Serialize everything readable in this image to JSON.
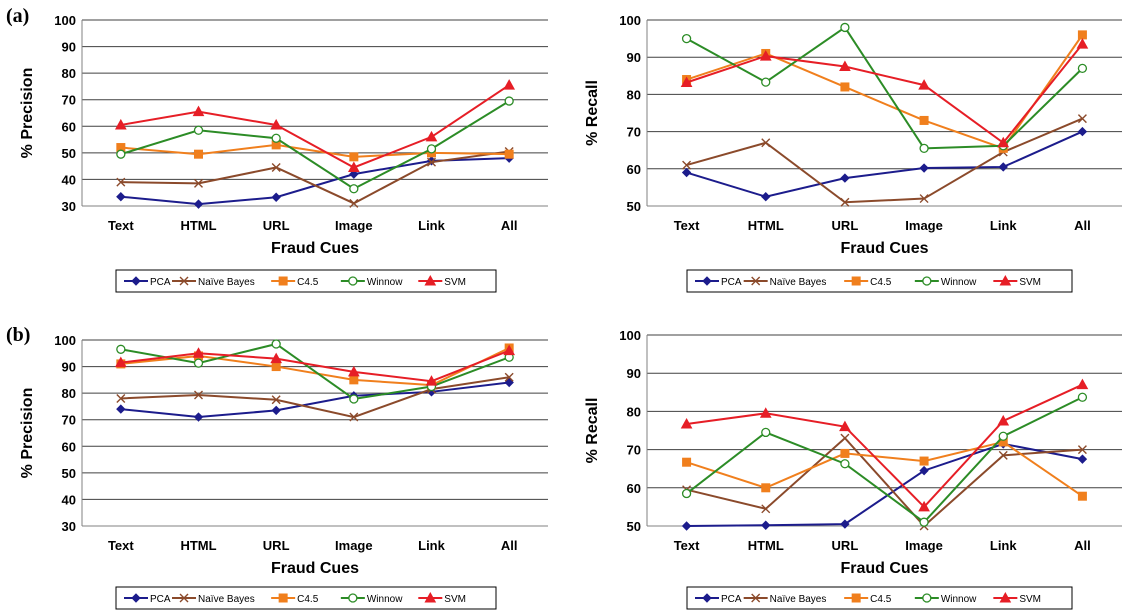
{
  "panel_labels": [
    "(a)",
    "(b)"
  ],
  "chart_data": [
    {
      "type": "line",
      "ylabel": "% Precision",
      "xlabel": "Fraud Cues",
      "categories": [
        "Text",
        "HTML",
        "URL",
        "Image",
        "Link",
        "All"
      ],
      "ylim": [
        30,
        100
      ],
      "yticks": [
        30,
        40,
        50,
        60,
        70,
        80,
        90,
        100
      ],
      "grid": true,
      "legend_position": "bottom",
      "series": [
        {
          "name": "PCA",
          "values": [
            33.5,
            30.7,
            33.3,
            42,
            47,
            48
          ]
        },
        {
          "name": "Naïve Bayes",
          "values": [
            39,
            38.5,
            44.5,
            31,
            46.5,
            50.5
          ]
        },
        {
          "name": "C4.5",
          "values": [
            52,
            49.5,
            53,
            48.5,
            50,
            49.5
          ]
        },
        {
          "name": "Winnow",
          "values": [
            49.5,
            58.5,
            55.5,
            36.5,
            51.5,
            69.5
          ]
        },
        {
          "name": "SVM",
          "values": [
            60.5,
            65.5,
            60.5,
            44.5,
            56,
            75.5
          ]
        }
      ]
    },
    {
      "type": "line",
      "ylabel": "% Recall",
      "xlabel": "Fraud Cues",
      "categories": [
        "Text",
        "HTML",
        "URL",
        "Image",
        "Link",
        "All"
      ],
      "ylim": [
        50,
        100
      ],
      "yticks": [
        50,
        60,
        70,
        80,
        90,
        100
      ],
      "grid": true,
      "legend_position": "bottom",
      "series": [
        {
          "name": "PCA",
          "values": [
            59,
            52.5,
            57.5,
            60.2,
            60.5,
            70
          ]
        },
        {
          "name": "Naïve Bayes",
          "values": [
            61,
            67,
            51,
            52,
            64.5,
            73.5
          ]
        },
        {
          "name": "C4.5",
          "values": [
            84,
            91,
            82,
            73,
            65.5,
            96
          ]
        },
        {
          "name": "Winnow",
          "values": [
            95,
            83.3,
            98,
            65.5,
            66.2,
            87
          ]
        },
        {
          "name": "SVM",
          "values": [
            83.2,
            90.3,
            87.5,
            82.5,
            67,
            93.5
          ]
        }
      ]
    },
    {
      "type": "line",
      "ylabel": "% Precision",
      "xlabel": "Fraud Cues",
      "categories": [
        "Text",
        "HTML",
        "URL",
        "Image",
        "Link",
        "All"
      ],
      "ylim": [
        30,
        100
      ],
      "yticks": [
        30,
        40,
        50,
        60,
        70,
        80,
        90,
        100
      ],
      "grid": true,
      "legend_position": "bottom",
      "series": [
        {
          "name": "PCA",
          "values": [
            74,
            71,
            73.5,
            79,
            80.5,
            84
          ]
        },
        {
          "name": "Naïve Bayes",
          "values": [
            78,
            79.3,
            77.5,
            71,
            81.5,
            86
          ]
        },
        {
          "name": "C4.5",
          "values": [
            91,
            94,
            90,
            85,
            83,
            97
          ]
        },
        {
          "name": "Winnow",
          "values": [
            96.5,
            91.3,
            98.5,
            77.8,
            82.5,
            93.5
          ]
        },
        {
          "name": "SVM",
          "values": [
            91.5,
            95,
            93,
            88,
            84.5,
            96
          ]
        }
      ]
    },
    {
      "type": "line",
      "ylabel": "% Recall",
      "xlabel": "Fraud Cues",
      "categories": [
        "Text",
        "HTML",
        "URL",
        "Image",
        "Link",
        "All"
      ],
      "ylim": [
        50,
        100
      ],
      "yticks": [
        50,
        60,
        70,
        80,
        90,
        100
      ],
      "grid": true,
      "legend_position": "bottom",
      "series": [
        {
          "name": "PCA",
          "values": [
            50,
            50.2,
            50.5,
            64.5,
            71.5,
            67.5
          ]
        },
        {
          "name": "Naïve Bayes",
          "values": [
            59.5,
            54.5,
            73,
            50,
            68.5,
            70
          ]
        },
        {
          "name": "C4.5",
          "values": [
            66.7,
            60,
            69,
            67,
            72,
            57.8
          ]
        },
        {
          "name": "Winnow",
          "values": [
            58.5,
            74.5,
            66.3,
            51,
            73.5,
            83.7
          ]
        },
        {
          "name": "SVM",
          "values": [
            76.7,
            79.5,
            76,
            55,
            77.5,
            87
          ]
        }
      ]
    }
  ],
  "series_style": {
    "PCA": {
      "color": "#1c1c8c",
      "marker": "diamond"
    },
    "Naïve Bayes": {
      "color": "#8b4a2b",
      "marker": "x"
    },
    "C4.5": {
      "color": "#f07f1d",
      "marker": "square"
    },
    "Winnow": {
      "color": "#2c8c26",
      "marker": "circle"
    },
    "SVM": {
      "color": "#e61e26",
      "marker": "triangle"
    }
  }
}
